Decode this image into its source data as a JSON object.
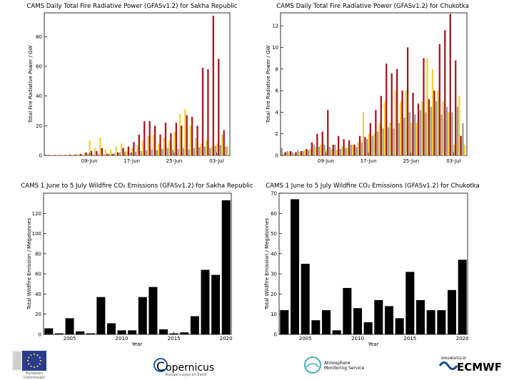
{
  "chart_data": [
    {
      "id": "frp_sakha",
      "type": "bar",
      "title": "CAMS Daily Total Fire Radiative Power (GFASv1.2) for Sakha Republic",
      "xlabel": "",
      "ylabel": "Total Fire Radiative Power / GW",
      "ylim": [
        0,
        96
      ],
      "yticks": [
        0,
        20,
        40,
        60,
        80
      ],
      "xtick_labels": [
        {
          "label": "09-Jun",
          "day_index": 8
        },
        {
          "label": "17-Jun",
          "day_index": 16
        },
        {
          "label": "25-Jun",
          "day_index": 24
        },
        {
          "label": "03-Jul",
          "day_index": 32
        }
      ],
      "n_days": 35,
      "series": [
        {
          "color": "#9e9e9e",
          "values": [
            0.3,
            0.2,
            0.2,
            0.2,
            0.3,
            0.3,
            0.5,
            0.4,
            0.8,
            0.6,
            0.9,
            0.8,
            1.2,
            1.5,
            2,
            2.5,
            2,
            2.5,
            3,
            3.5,
            4,
            3.5,
            4.5,
            5,
            4,
            4.5,
            5,
            4,
            5,
            5.5,
            6,
            5,
            6.5,
            7,
            6
          ]
        },
        {
          "color": "#f5d03b",
          "values": [
            0.5,
            0.3,
            0.4,
            0.3,
            0.5,
            0.6,
            1,
            1.5,
            10,
            5,
            12,
            4,
            4,
            6,
            8,
            3,
            5,
            7,
            10,
            13,
            14,
            8,
            12,
            10,
            16,
            28,
            31,
            20,
            12,
            8,
            10,
            6,
            8,
            14,
            6
          ]
        },
        {
          "color": "#a31b25",
          "values": [
            0.3,
            0.3,
            0.2,
            0.3,
            0.5,
            0.5,
            1,
            2,
            3,
            3,
            5,
            1,
            1,
            2,
            5,
            6,
            9,
            14,
            23,
            23,
            20,
            14,
            22,
            15,
            22,
            20,
            27,
            26,
            20,
            59,
            58,
            94,
            65,
            17,
            0
          ]
        }
      ]
    },
    {
      "id": "frp_chukotka",
      "type": "bar",
      "title": "CAMS Daily Total Fire Radiative Power (GFASv1.2) for Chukotka",
      "xlabel": "",
      "ylabel": "Total Fire Radiative Power / GW",
      "ylim": [
        0,
        13.2
      ],
      "yticks": [
        0,
        2,
        4,
        6,
        8,
        10,
        12
      ],
      "xtick_labels": [
        {
          "label": "09-Jun",
          "day_index": 8
        },
        {
          "label": "17-Jun",
          "day_index": 16
        },
        {
          "label": "25-Jun",
          "day_index": 24
        },
        {
          "label": "03-Jul",
          "day_index": 32
        }
      ],
      "n_days": 35,
      "series": [
        {
          "color": "#9e9e9e",
          "values": [
            0.7,
            0.4,
            0.3,
            0.5,
            0.4,
            0.5,
            1,
            0.8,
            1,
            0.8,
            1,
            0.6,
            0.7,
            1,
            0.8,
            1.2,
            1.5,
            1.8,
            2.2,
            2.5,
            2.6,
            2.5,
            3,
            3.5,
            4,
            3.8,
            4.2,
            4,
            4.5,
            5,
            3.8,
            4.5,
            4,
            4.5,
            3
          ]
        },
        {
          "color": "#f5d03b",
          "values": [
            0.2,
            0.3,
            0.2,
            0.3,
            0.5,
            0.6,
            0.8,
            1,
            0.5,
            0.6,
            0.5,
            0.8,
            0.7,
            1,
            1.2,
            4,
            2,
            2,
            3,
            5,
            3,
            6,
            5,
            6,
            3,
            3,
            5,
            9,
            8,
            6,
            5,
            4,
            1,
            5.5,
            1
          ]
        },
        {
          "color": "#a31b25",
          "values": [
            0.3,
            0.4,
            0.3,
            0.4,
            0.6,
            1.2,
            2,
            2.2,
            4.2,
            1,
            1.8,
            1.5,
            1.4,
            1,
            1.8,
            1.7,
            3,
            4.2,
            5.5,
            8.5,
            7.6,
            8,
            6,
            10,
            5.8,
            4.8,
            9,
            5.2,
            6,
            10.3,
            11.6,
            13.1,
            8.8,
            1.8,
            0
          ]
        }
      ]
    },
    {
      "id": "co_sakha",
      "type": "bar",
      "title": "CAMS 1 June to 5 July Wildfire CO₂ Emissions (GFASv1.2) for Sakha Republic",
      "xlabel": "Year",
      "ylabel": "Total Wildfire Emission / Megatonnes",
      "ylim": [
        0,
        140
      ],
      "yticks": [
        0,
        20,
        40,
        60,
        80,
        100,
        120
      ],
      "color": "#000000",
      "categories": [
        2003,
        2004,
        2005,
        2006,
        2007,
        2008,
        2009,
        2010,
        2011,
        2012,
        2013,
        2014,
        2015,
        2016,
        2017,
        2018,
        2019,
        2020
      ],
      "xtick_labels": [
        "2005",
        "2010",
        "2015",
        "2020"
      ],
      "values": [
        6,
        1,
        16,
        3,
        1,
        37,
        11,
        4,
        4,
        37,
        47,
        5,
        1,
        2,
        18,
        64,
        59,
        133
      ]
    },
    {
      "id": "co_chukotka",
      "type": "bar",
      "title": "CAMS 1 June to 5 July Wildfire CO₂ Emissions (GFASv1.2) for Chukotka",
      "xlabel": "Year",
      "ylabel": "Total Wildfire Emission / Megatonnes",
      "ylim": [
        0,
        70
      ],
      "yticks": [
        0,
        10,
        20,
        30,
        40,
        50,
        60,
        70
      ],
      "color": "#000000",
      "categories": [
        2003,
        2004,
        2005,
        2006,
        2007,
        2008,
        2009,
        2010,
        2011,
        2012,
        2013,
        2014,
        2015,
        2016,
        2017,
        2018,
        2019,
        2020
      ],
      "xtick_labels": [
        "2005",
        "2010",
        "2015",
        "2020"
      ],
      "values": [
        12,
        67,
        35,
        7,
        12,
        2,
        23,
        13,
        6,
        17,
        14,
        8,
        31,
        17,
        12,
        12,
        22,
        37
      ]
    }
  ],
  "footer": {
    "ec": {
      "line1": "European",
      "line2": "Commission"
    },
    "copernicus": {
      "name": "opernicus",
      "letter": "C",
      "tagline": "Europe's eyes on Earth"
    },
    "atmosphere": {
      "line1": "Atmosphere",
      "line2": "Monitoring Service"
    },
    "ecmwf": {
      "name": "ECMWF",
      "implemented": "IMPLEMENTED BY"
    },
    "colors": {
      "ec_blue": "#2a3c8f",
      "ec_star": "#f5d03b",
      "copernicus_blue": "#1d5fa7",
      "atmosphere_teal": "#39a8b0",
      "ecmwf_blue": "#1a4c8b"
    }
  }
}
